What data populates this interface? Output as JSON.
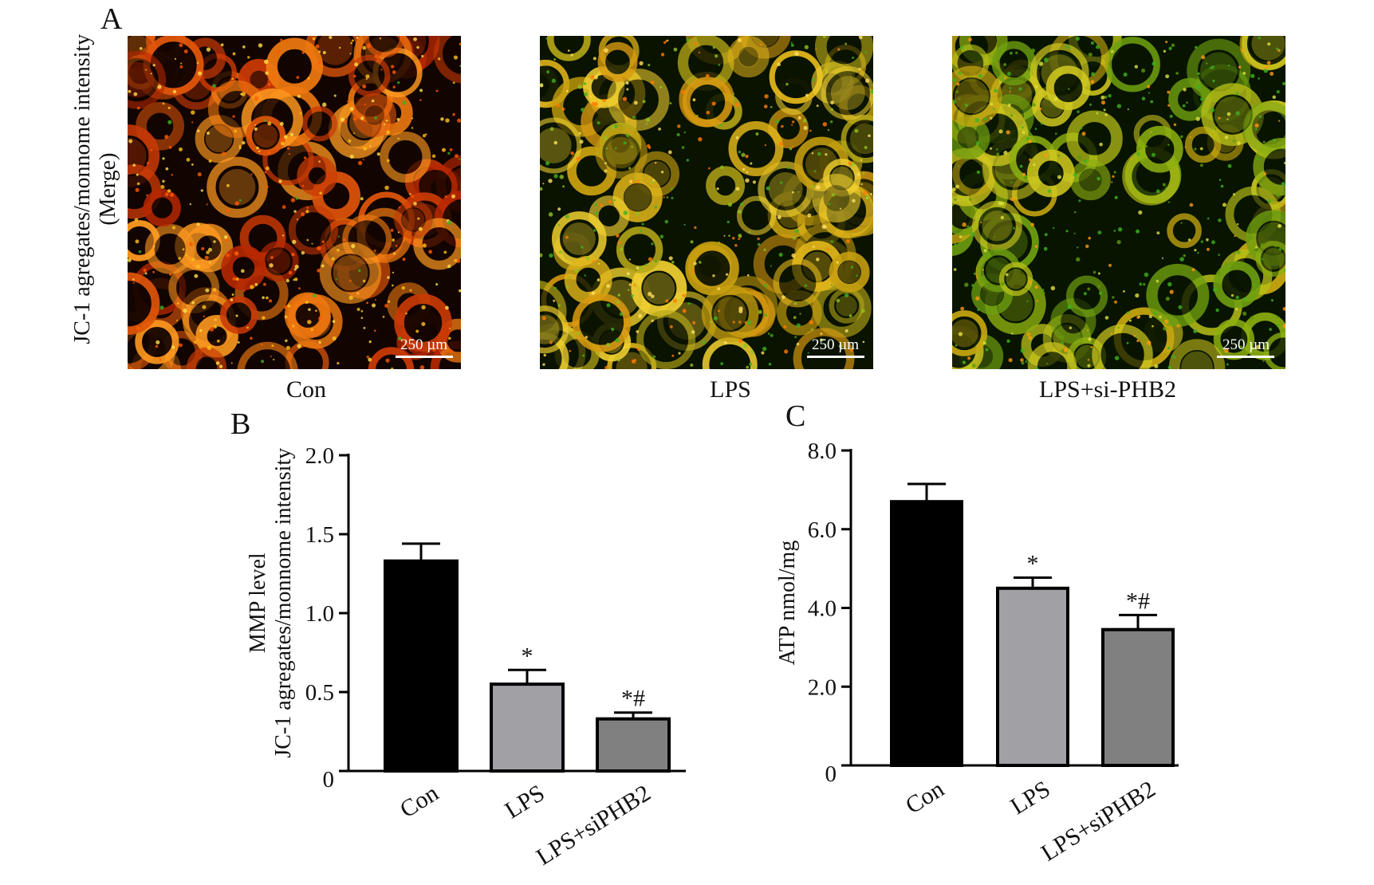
{
  "panel_a": {
    "letter": "A",
    "ylabel_line1": "JC-1 agregates/monnome intensity",
    "ylabel_line2": "(Merge)",
    "images": [
      {
        "caption": "Con",
        "scale_bar": "250 µm",
        "palette": "red"
      },
      {
        "caption": "LPS",
        "scale_bar": "250 µm",
        "palette": "yellow"
      },
      {
        "caption": "LPS+si-PHB2",
        "scale_bar": "250 µm",
        "palette": "green"
      }
    ]
  },
  "chart_data": [
    {
      "panel": "B",
      "type": "bar",
      "title": "",
      "xlabel": "",
      "ylabel_line1": "MMP level",
      "ylabel_line2": "JC-1 agregates/monnome intensity",
      "categories": [
        "Con",
        "LPS",
        "LPS+siPHB2"
      ],
      "values": [
        1.33,
        0.55,
        0.33
      ],
      "errors": [
        0.11,
        0.09,
        0.04
      ],
      "significance": [
        "",
        "*",
        "*#"
      ],
      "colors": [
        "#000000",
        "#a0a0a5",
        "#808080"
      ],
      "ylim": [
        0,
        2.0
      ],
      "yticks": [
        0,
        0.5,
        1.0,
        1.5,
        2.0
      ],
      "ytick_labels": [
        "0",
        "0.5",
        "1.0",
        "1.5",
        "2.0"
      ],
      "grid": false
    },
    {
      "panel": "C",
      "type": "bar",
      "title": "",
      "xlabel": "",
      "ylabel_line1": "ATP nmol/mg",
      "ylabel_line2": "",
      "categories": [
        "Con",
        "LPS",
        "LPS+siPHB2"
      ],
      "values": [
        6.7,
        4.5,
        3.45
      ],
      "errors": [
        0.45,
        0.27,
        0.37
      ],
      "significance": [
        "",
        "*",
        "*#"
      ],
      "colors": [
        "#000000",
        "#a0a0a5",
        "#808080"
      ],
      "ylim": [
        0,
        8.0
      ],
      "yticks": [
        0,
        2.0,
        4.0,
        6.0,
        8.0
      ],
      "ytick_labels": [
        "0",
        "2.0",
        "4.0",
        "6.0",
        "8.0"
      ],
      "grid": false
    }
  ]
}
